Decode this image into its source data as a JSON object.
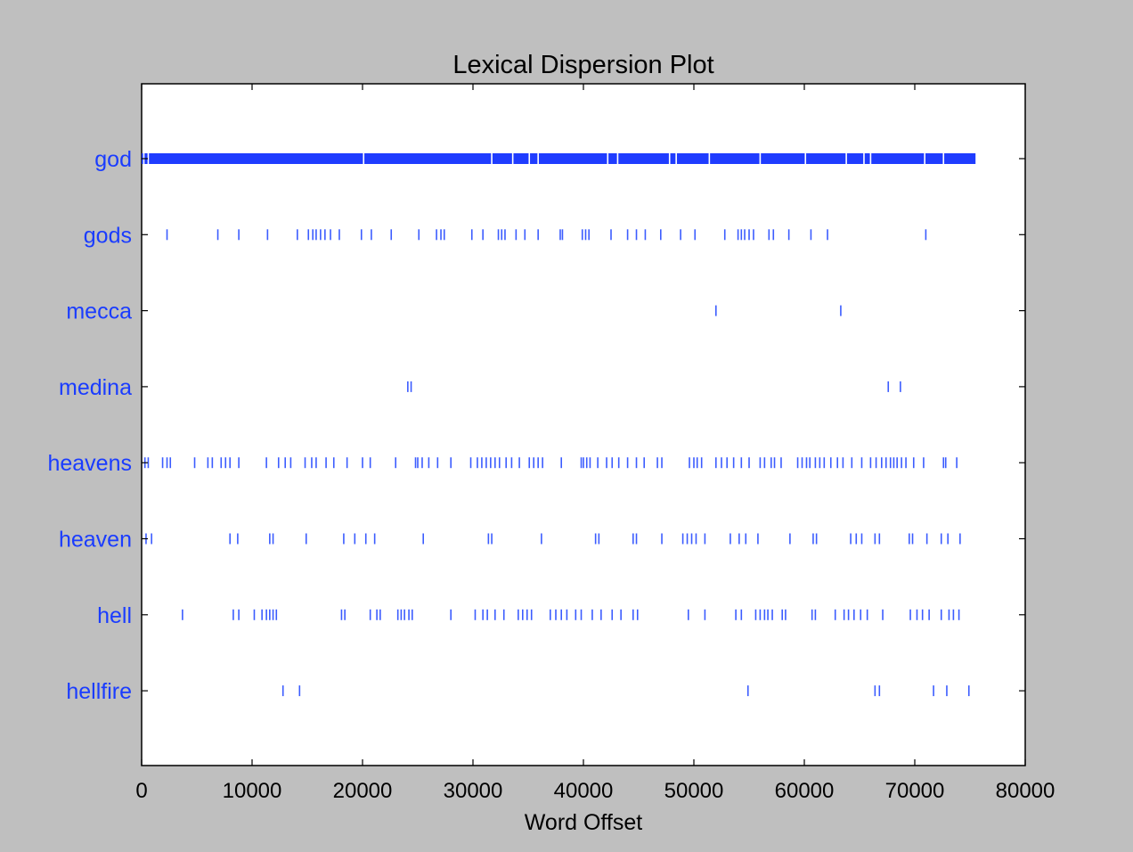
{
  "chart_data": {
    "type": "scatter",
    "title": "Lexical Dispersion Plot",
    "xlabel": "Word Offset",
    "ylabel": "",
    "xlim": [
      0,
      80000
    ],
    "xticks": [
      0,
      10000,
      20000,
      30000,
      40000,
      50000,
      60000,
      70000,
      80000
    ],
    "tick_labels": [
      "0",
      "10000",
      "20000",
      "30000",
      "40000",
      "50000",
      "60000",
      "70000",
      "80000"
    ],
    "grid": false,
    "colors": {
      "marks": "#3b5cff",
      "dense": "#1f3cff",
      "labels": "#1a3cff",
      "figure_bg": "#bfbfbf",
      "plot_bg": "#ffffff"
    },
    "series": [
      {
        "name": "god",
        "dense_range": [
          0,
          75500
        ],
        "values": [
          200,
          600,
          20100,
          31700,
          33600,
          35100,
          35900,
          42200,
          43100,
          47800,
          48400,
          51400,
          56000,
          60100,
          63800,
          65400,
          66000,
          70900,
          72600
        ]
      },
      {
        "name": "gods",
        "values": [
          2300,
          6900,
          8800,
          11400,
          14100,
          15100,
          15500,
          15800,
          16200,
          16600,
          17100,
          17900,
          19900,
          20800,
          22600,
          25100,
          26700,
          27100,
          27400,
          29900,
          30900,
          32300,
          32600,
          32900,
          33900,
          34700,
          35900,
          37900,
          38100,
          39900,
          40200,
          40500,
          42500,
          44000,
          44800,
          45600,
          47000,
          48800,
          50100,
          52800,
          54000,
          54300,
          54600,
          55000,
          55400,
          56800,
          57200,
          58600,
          60600,
          62100,
          71000
        ]
      },
      {
        "name": "mecca",
        "values": [
          52000,
          63300
        ]
      },
      {
        "name": "medina",
        "values": [
          24100,
          24400,
          67600,
          68700
        ]
      },
      {
        "name": "heavens",
        "values": [
          300,
          600,
          1900,
          2300,
          2600,
          4800,
          6000,
          6400,
          7200,
          7600,
          8000,
          8800,
          11300,
          12400,
          13000,
          13500,
          14800,
          15400,
          15800,
          16700,
          17400,
          18600,
          20000,
          20700,
          23000,
          24800,
          25000,
          25400,
          26000,
          26800,
          28000,
          29800,
          30400,
          30800,
          31200,
          31600,
          32000,
          32400,
          33000,
          33500,
          34200,
          35100,
          35500,
          35900,
          36300,
          38000,
          39800,
          40000,
          40300,
          40600,
          41300,
          42100,
          42600,
          43200,
          44000,
          44800,
          45500,
          46700,
          47100,
          49600,
          50000,
          50300,
          50700,
          52000,
          52500,
          53000,
          53600,
          54300,
          55000,
          56000,
          56400,
          57000,
          57300,
          57900,
          59400,
          59800,
          60200,
          60500,
          61000,
          61400,
          61800,
          62400,
          63000,
          63500,
          64300,
          65200,
          66000,
          66500,
          67000,
          67400,
          67800,
          68100,
          68400,
          68800,
          69200,
          69900,
          70800,
          72600,
          72800,
          73800
        ]
      },
      {
        "name": "heaven",
        "values": [
          400,
          900,
          8000,
          8700,
          11600,
          11900,
          14900,
          18300,
          19300,
          20300,
          21100,
          25500,
          31400,
          31700,
          36200,
          41100,
          41400,
          44500,
          44800,
          47100,
          49000,
          49400,
          49800,
          50200,
          51000,
          53300,
          54100,
          54700,
          55800,
          58700,
          60800,
          61100,
          64200,
          64700,
          65200,
          66400,
          66800,
          69500,
          69800,
          71100,
          72400,
          73000,
          74100
        ]
      },
      {
        "name": "hell",
        "values": [
          3700,
          8300,
          8800,
          10200,
          10900,
          11300,
          11600,
          11900,
          12200,
          18100,
          18400,
          20700,
          21300,
          21600,
          23200,
          23500,
          23800,
          24200,
          24500,
          28000,
          30200,
          30900,
          31300,
          32000,
          32800,
          34100,
          34500,
          34900,
          35300,
          37000,
          37500,
          38000,
          38500,
          39300,
          39800,
          40800,
          41600,
          42600,
          43400,
          44500,
          44900,
          49500,
          51000,
          53800,
          54300,
          55600,
          56000,
          56400,
          56700,
          57100,
          58000,
          58300,
          60700,
          61000,
          62800,
          63600,
          64000,
          64500,
          65100,
          65700,
          67100,
          69600,
          70200,
          70700,
          71300,
          72400,
          73100,
          73500,
          74000
        ]
      },
      {
        "name": "hellfire",
        "values": [
          12800,
          14300,
          54900,
          66400,
          66800,
          71700,
          72900,
          74900
        ]
      }
    ]
  }
}
